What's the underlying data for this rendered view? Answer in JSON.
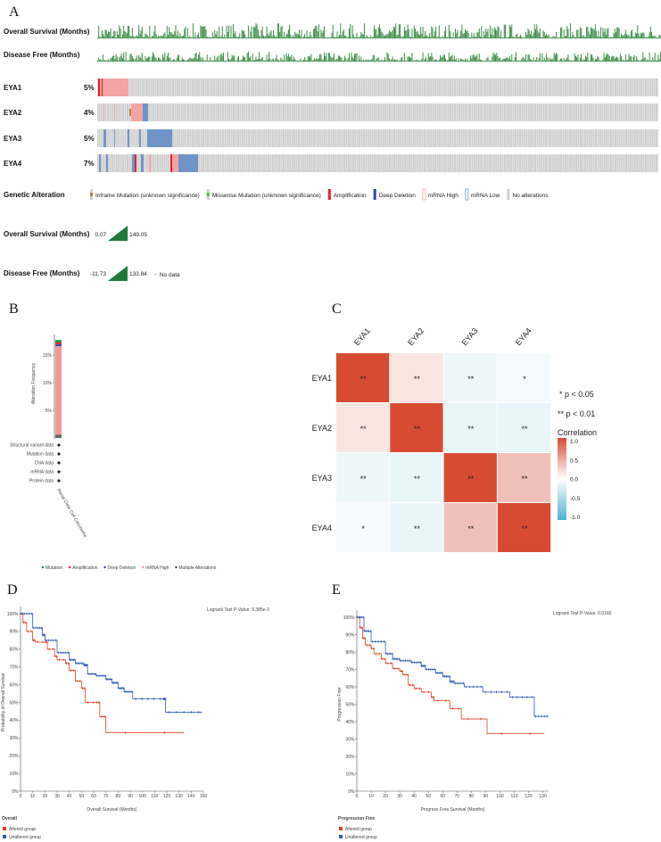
{
  "panel_a": {
    "letter": "A",
    "clinical_tracks": [
      "Overall Survival (Months)",
      "Disease Free (Months)"
    ],
    "genes": [
      {
        "name": "EYA1",
        "percent": "5%"
      },
      {
        "name": "EYA2",
        "percent": "4%"
      },
      {
        "name": "EYA3",
        "percent": "5%"
      },
      {
        "name": "EYA4",
        "percent": "7%"
      }
    ],
    "legend_title": "Genetic Alteration",
    "legend": [
      {
        "label": "Inframe Mutation (unknown significance)",
        "color": "#a68a2e"
      },
      {
        "label": "Missense Mutation (unknown significance)",
        "color": "#5fb54a"
      },
      {
        "label": "Amplification",
        "color": "#e0242b"
      },
      {
        "label": "Deep Deletion",
        "color": "#2a49a8"
      },
      {
        "label": "mRNA High",
        "color": "#f4a4a4"
      },
      {
        "label": "mRNA Low",
        "color": "#6f95c8"
      },
      {
        "label": "No alterations",
        "color": "#cfcfcf"
      }
    ],
    "os_legend": {
      "title": "Overall Survival (Months)",
      "min": "0.07",
      "max": "149.05"
    },
    "df_legend": {
      "title": "Disease Free (Months)",
      "min": "-11.73",
      "max": "133.84",
      "no_data": "No data"
    }
  },
  "chart_data": [
    {
      "panel": "B",
      "type": "bar",
      "ylabel": "Alteration Frequency",
      "categories": [
        "Renal Clear Cell Carcinoma"
      ],
      "ytick_labels": [
        "5%",
        "10%",
        "15%"
      ],
      "series": [
        {
          "name": "Multiple Alterations",
          "values": [
            0.6
          ],
          "color": "#666666"
        },
        {
          "name": "mRNA High",
          "values": [
            16.0
          ],
          "color": "#f19999"
        },
        {
          "name": "Deep Deletion",
          "values": [
            0.3
          ],
          "color": "#2a49a8"
        },
        {
          "name": "Amplification",
          "values": [
            0.4
          ],
          "color": "#d0312d"
        },
        {
          "name": "Mutation",
          "values": [
            0.4
          ],
          "color": "#1a8a3a"
        }
      ],
      "data_types": [
        "Structural variant data",
        "Mutation data",
        "CNA data",
        "mRNA data",
        "Protein data"
      ],
      "legend": [
        "Mutation",
        "Amplification",
        "Deep Deletion",
        "mRNA High",
        "Multiple Alterations"
      ]
    },
    {
      "panel": "C",
      "type": "heatmap",
      "labels": [
        "EYA1",
        "EYA2",
        "EYA3",
        "EYA4"
      ],
      "values": [
        [
          1.0,
          0.15,
          -0.1,
          -0.05
        ],
        [
          0.15,
          1.0,
          -0.12,
          -0.12
        ],
        [
          -0.1,
          -0.12,
          1.0,
          0.35
        ],
        [
          -0.05,
          -0.12,
          0.35,
          1.0
        ]
      ],
      "significance": [
        [
          "**",
          "**",
          "**",
          "*"
        ],
        [
          "**",
          "**",
          "**",
          "**"
        ],
        [
          "**",
          "**",
          "**",
          "**"
        ],
        [
          "*",
          "**",
          "**",
          "**"
        ]
      ],
      "sig_legend": [
        "* p < 0.05",
        "** p < 0.01"
      ],
      "colorbar_title": "Correlation",
      "colorbar_ticks": [
        "1.0",
        "0.5",
        "0.0",
        "-0.5",
        "-1.0"
      ],
      "colors": {
        "high": "#d84b33",
        "mid": "#ffffff",
        "low": "#4bb3d0"
      }
    },
    {
      "panel": "D",
      "type": "line",
      "xlabel": "Overall Survival (Months)",
      "ylabel": "Probability of Overall Survival",
      "xlim": [
        0,
        150
      ],
      "ylim": [
        0,
        100
      ],
      "xticks": [
        0,
        10,
        20,
        30,
        40,
        50,
        60,
        70,
        80,
        90,
        100,
        110,
        120,
        130,
        140,
        150
      ],
      "yticks": [
        0,
        10,
        20,
        30,
        40,
        50,
        60,
        70,
        80,
        90,
        100
      ],
      "annotation": "Logrank Test P-Value: 9.385e-3",
      "legend_title": "Overall",
      "series": [
        {
          "name": "Altered group",
          "color": "#e0401f",
          "x": [
            0,
            2,
            5,
            10,
            12,
            20,
            22,
            28,
            30,
            37,
            40,
            45,
            50,
            53,
            62,
            65,
            70,
            134
          ],
          "y": [
            100,
            95,
            90,
            85,
            84,
            84,
            80,
            76,
            74,
            72,
            68,
            62,
            58,
            50,
            50,
            42,
            33,
            33
          ]
        },
        {
          "name": "Unaltered group",
          "color": "#2e5bb8",
          "x": [
            0,
            10,
            18,
            20,
            30,
            40,
            45,
            52,
            55,
            62,
            70,
            75,
            80,
            85,
            92,
            117,
            119,
            149
          ],
          "y": [
            100,
            92,
            88,
            85,
            78,
            74,
            72,
            71,
            66,
            65,
            63,
            61,
            58,
            56,
            52,
            52,
            44.5,
            44.5
          ]
        }
      ]
    },
    {
      "panel": "E",
      "type": "line",
      "xlabel": "Progress Free Survival (Months)",
      "ylabel": "Progression Free",
      "xlim": [
        0,
        134
      ],
      "ylim": [
        0,
        100
      ],
      "xticks": [
        0,
        10,
        20,
        30,
        40,
        50,
        60,
        70,
        80,
        90,
        100,
        110,
        120,
        130
      ],
      "yticks": [
        0,
        10,
        20,
        30,
        40,
        50,
        60,
        70,
        80,
        90,
        100
      ],
      "annotation": "Logrank Test P-Value: 0.0160",
      "legend_title": "Progression Free",
      "series": [
        {
          "name": "Altered group",
          "color": "#e0401f",
          "x": [
            0,
            2,
            4,
            6,
            10,
            12,
            17,
            20,
            25,
            30,
            32,
            36,
            40,
            45,
            52,
            54,
            65,
            73,
            91,
            131
          ],
          "y": [
            100,
            94,
            88,
            84,
            82,
            79,
            76,
            73.5,
            70.5,
            69,
            67,
            61,
            59,
            57,
            54,
            52,
            47.5,
            41.5,
            33,
            33
          ]
        },
        {
          "name": "Unaltered group",
          "color": "#2e5bb8",
          "x": [
            0,
            5,
            10,
            20,
            25,
            30,
            38,
            45,
            48,
            55,
            60,
            65,
            68,
            75,
            88,
            107,
            124,
            134
          ],
          "y": [
            100,
            92,
            86,
            79,
            76,
            75,
            74,
            72,
            70,
            68,
            66,
            63,
            62,
            60,
            57,
            54,
            43,
            43
          ]
        }
      ]
    }
  ]
}
